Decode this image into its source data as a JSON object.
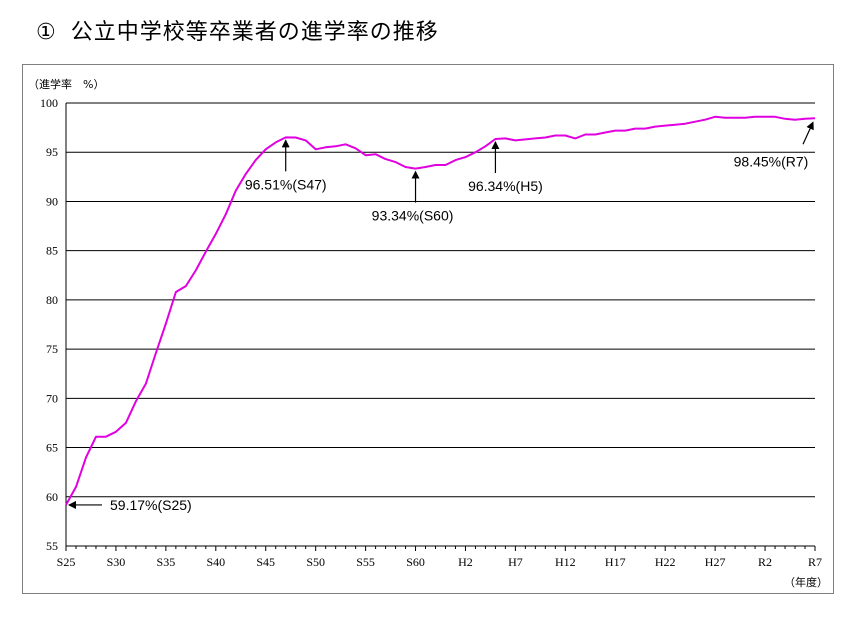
{
  "page": {
    "title_number": "①",
    "title_text": "公立中学校等卒業者の進学率の推移"
  },
  "chart_data": {
    "type": "line",
    "title": "公立中学校等卒業者の進学率の推移",
    "ylabel": "（進学率　%）",
    "xlabel": "（年度）",
    "ylim": [
      55,
      100
    ],
    "yticks": [
      55,
      60,
      65,
      70,
      75,
      80,
      85,
      90,
      95,
      100
    ],
    "grid": true,
    "xtick_labels": [
      "S25",
      "S30",
      "S35",
      "S40",
      "S45",
      "S50",
      "S55",
      "S60",
      "H2",
      "H7",
      "H12",
      "H17",
      "H22",
      "H27",
      "R2",
      "R7"
    ],
    "line_color": "#e000e0",
    "series": [
      {
        "x": [
          "S25",
          "S26",
          "S27",
          "S28",
          "S29",
          "S30",
          "S31",
          "S32",
          "S33",
          "S34",
          "S35",
          "S36",
          "S37",
          "S38",
          "S39",
          "S40",
          "S41",
          "S42",
          "S43",
          "S44",
          "S45",
          "S46",
          "S47",
          "S48",
          "S49",
          "S50",
          "S51",
          "S52",
          "S53",
          "S54",
          "S55",
          "S56",
          "S57",
          "S58",
          "S59",
          "S60",
          "S61",
          "S62",
          "S63",
          "H1",
          "H2",
          "H3",
          "H4",
          "H5",
          "H6",
          "H7",
          "H8",
          "H9",
          "H10",
          "H11",
          "H12",
          "H13",
          "H14",
          "H15",
          "H16",
          "H17",
          "H18",
          "H19",
          "H20",
          "H21",
          "H22",
          "H23",
          "H24",
          "H25",
          "H26",
          "H27",
          "H28",
          "H29",
          "H30",
          "R1",
          "R2",
          "R3",
          "R4",
          "R5",
          "R6",
          "R7"
        ],
        "values": [
          59.17,
          61.0,
          64.0,
          66.1,
          66.1,
          66.6,
          67.5,
          69.7,
          71.5,
          74.6,
          77.6,
          80.8,
          81.4,
          83.0,
          84.9,
          86.7,
          88.7,
          91.1,
          92.8,
          94.2,
          95.3,
          96.0,
          96.51,
          96.5,
          96.2,
          95.3,
          95.5,
          95.6,
          95.8,
          95.4,
          94.7,
          94.8,
          94.3,
          94.0,
          93.5,
          93.34,
          93.5,
          93.7,
          93.7,
          94.2,
          94.5,
          95.0,
          95.6,
          96.34,
          96.4,
          96.2,
          96.3,
          96.4,
          96.5,
          96.7,
          96.7,
          96.4,
          96.8,
          96.8,
          97.0,
          97.2,
          97.2,
          97.4,
          97.4,
          97.6,
          97.7,
          97.8,
          97.9,
          98.1,
          98.3,
          98.6,
          98.5,
          98.5,
          98.5,
          98.6,
          98.6,
          98.6,
          98.4,
          98.3,
          98.4,
          98.45
        ]
      }
    ],
    "annotations": [
      {
        "label": "59.17%(S25)",
        "year_index": 0,
        "value": 59.17
      },
      {
        "label": "96.51%(S47)",
        "year_index": 22,
        "value": 96.51
      },
      {
        "label": "93.34%(S60)",
        "year_index": 35,
        "value": 93.34
      },
      {
        "label": "96.34%(H5)",
        "year_index": 43,
        "value": 96.34
      },
      {
        "label": "98.45%(R7)",
        "year_index": 75,
        "value": 98.45
      }
    ]
  }
}
